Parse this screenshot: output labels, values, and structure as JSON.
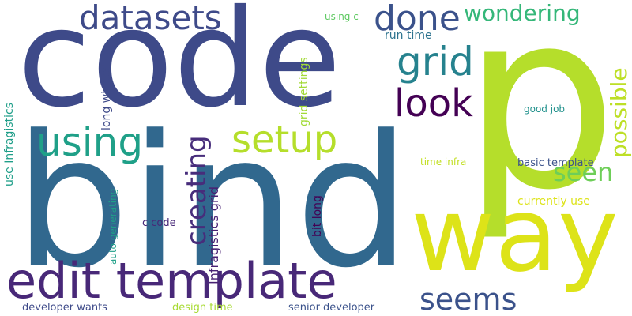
{
  "background": "#ffffff",
  "words": [
    {
      "text": "bind",
      "color": "#31688e"
    },
    {
      "text": "code",
      "color": "#3e4a89"
    },
    {
      "text": "p",
      "color": "#b5de2b"
    },
    {
      "text": "way",
      "color": "#dde318"
    },
    {
      "text": "edit template",
      "color": "#482878"
    },
    {
      "text": "datasets",
      "color": "#3e4a89"
    },
    {
      "text": "done",
      "color": "#3b528b"
    },
    {
      "text": "wondering",
      "color": "#35b779"
    },
    {
      "text": "grid",
      "color": "#26828e"
    },
    {
      "text": "look",
      "color": "#440154"
    },
    {
      "text": "using",
      "color": "#1fa088"
    },
    {
      "text": "setup",
      "color": "#b5de2b"
    },
    {
      "text": "seen",
      "color": "#6ece58"
    },
    {
      "text": "seems",
      "color": "#3b528b"
    },
    {
      "text": "possible",
      "color": "#bddf26"
    },
    {
      "text": "creating",
      "color": "#472d7b"
    },
    {
      "text": "Infragistics grid",
      "color": "#482173"
    },
    {
      "text": "grid settings",
      "color": "#a2da37"
    },
    {
      "text": "long winded",
      "color": "#3e4a89"
    },
    {
      "text": "use Infragistics",
      "color": "#1f9e89"
    },
    {
      "text": "run time",
      "color": "#2c728e"
    },
    {
      "text": "using c",
      "color": "#5ec962"
    },
    {
      "text": "good job",
      "color": "#21918c"
    },
    {
      "text": "time infra",
      "color": "#c2df23"
    },
    {
      "text": "basic template",
      "color": "#3b528b"
    },
    {
      "text": "currently use",
      "color": "#dde318"
    },
    {
      "text": "bit long",
      "color": "#440154"
    },
    {
      "text": "c code",
      "color": "#482878"
    },
    {
      "text": "auto generating",
      "color": "#1fa088"
    },
    {
      "text": "developer wants",
      "color": "#3e4a89"
    },
    {
      "text": "design time",
      "color": "#a8db34"
    },
    {
      "text": "senior developer",
      "color": "#3b528b"
    }
  ]
}
